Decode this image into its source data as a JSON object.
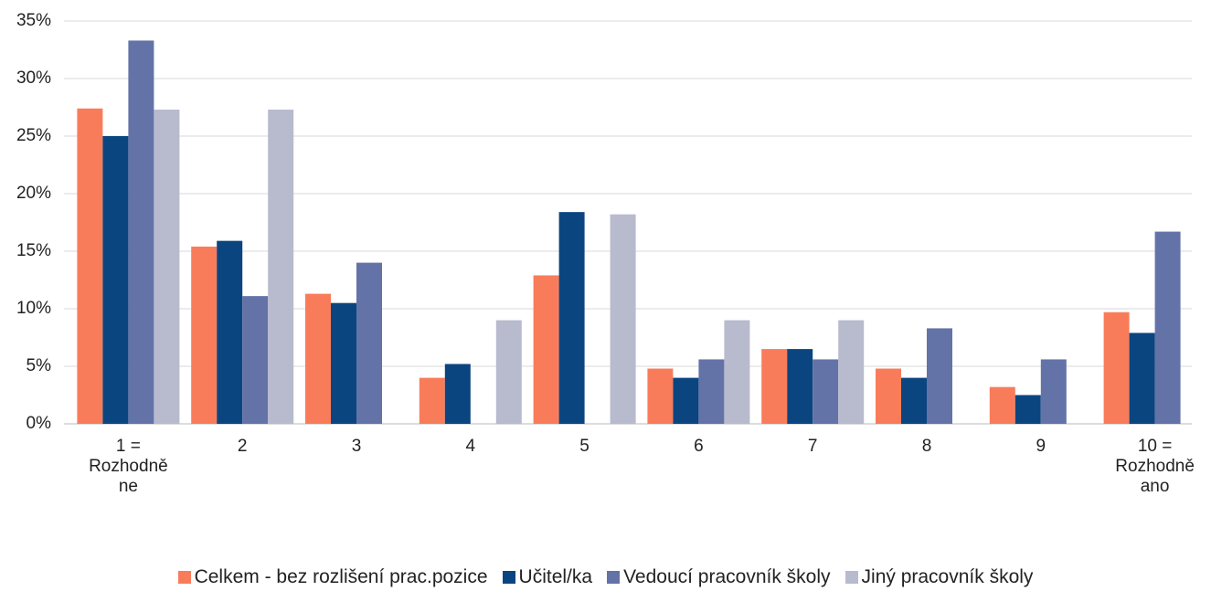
{
  "chart_data": {
    "type": "bar",
    "categories": [
      "1 = Rozhodně ne",
      "2",
      "3",
      "4",
      "5",
      "6",
      "7",
      "8",
      "9",
      "10 = Rozhodně ano"
    ],
    "series": [
      {
        "name": "Celkem - bez rozlišení prac.pozice",
        "color": "#f97c5a",
        "values": [
          27.4,
          15.4,
          11.3,
          4.0,
          12.9,
          4.8,
          6.5,
          4.8,
          3.2,
          9.7
        ]
      },
      {
        "name": "Učitel/ka",
        "color": "#0b4580",
        "values": [
          25.0,
          15.9,
          10.5,
          5.2,
          18.4,
          4.0,
          6.5,
          4.0,
          2.5,
          7.9
        ]
      },
      {
        "name": "Vedoucí pracovník školy",
        "color": "#6373a8",
        "values": [
          33.3,
          11.1,
          14.0,
          0,
          0,
          5.6,
          5.6,
          8.3,
          5.6,
          16.7
        ]
      },
      {
        "name": "Jiný pracovník školy",
        "color": "#b8bace",
        "values": [
          27.3,
          27.3,
          0,
          9.0,
          18.2,
          9.0,
          9.0,
          0,
          0,
          0
        ]
      }
    ],
    "ylim": [
      0,
      35
    ],
    "yticks": [
      {
        "value": 0,
        "label": "0%"
      },
      {
        "value": 5,
        "label": "5%"
      },
      {
        "value": 10,
        "label": "10%"
      },
      {
        "value": 15,
        "label": "15%"
      },
      {
        "value": 20,
        "label": "20%"
      },
      {
        "value": 25,
        "label": "25%"
      },
      {
        "value": 30,
        "label": "30%"
      },
      {
        "value": 35,
        "label": "35%"
      }
    ],
    "grid": true
  }
}
